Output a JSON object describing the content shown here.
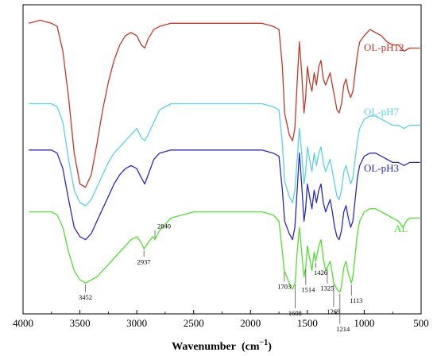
{
  "chart_data": {
    "type": "line",
    "title": "",
    "xlabel": "Wavenumber  (cm",
    "xlabel_sup": "−1",
    "xlabel_close": ")",
    "ylabel": "",
    "xlim": [
      4000,
      500
    ],
    "x_reversed": true,
    "x_ticks": [
      "4000",
      "3500",
      "3000",
      "2500",
      "2000",
      "1500",
      "1000",
      "500"
    ],
    "y_ticks_shown": false,
    "grid": false,
    "legend": "inline labels to the right of each trace",
    "series": [
      {
        "name": "OL-pH12",
        "color": "#c0392b",
        "points": [
          [
            3950,
            94
          ],
          [
            3850,
            95
          ],
          [
            3750,
            94
          ],
          [
            3700,
            93
          ],
          [
            3650,
            85
          ],
          [
            3600,
            70
          ],
          [
            3550,
            52
          ],
          [
            3500,
            42
          ],
          [
            3450,
            41
          ],
          [
            3400,
            45
          ],
          [
            3350,
            55
          ],
          [
            3300,
            66
          ],
          [
            3250,
            75
          ],
          [
            3200,
            82
          ],
          [
            3150,
            87
          ],
          [
            3100,
            90
          ],
          [
            3050,
            91
          ],
          [
            3000,
            90
          ],
          [
            2960,
            87
          ],
          [
            2930,
            86
          ],
          [
            2900,
            89
          ],
          [
            2850,
            92
          ],
          [
            2800,
            93
          ],
          [
            2700,
            94
          ],
          [
            2500,
            94
          ],
          [
            2300,
            94
          ],
          [
            2100,
            94
          ],
          [
            1900,
            94
          ],
          [
            1800,
            93
          ],
          [
            1750,
            92
          ],
          [
            1720,
            80
          ],
          [
            1700,
            65
          ],
          [
            1660,
            58
          ],
          [
            1630,
            56
          ],
          [
            1610,
            60
          ],
          [
            1590,
            75
          ],
          [
            1570,
            88
          ],
          [
            1550,
            78
          ],
          [
            1530,
            65
          ],
          [
            1515,
            70
          ],
          [
            1500,
            80
          ],
          [
            1480,
            75
          ],
          [
            1460,
            72
          ],
          [
            1440,
            78
          ],
          [
            1420,
            74
          ],
          [
            1400,
            80
          ],
          [
            1380,
            82
          ],
          [
            1360,
            76
          ],
          [
            1340,
            74
          ],
          [
            1320,
            76
          ],
          [
            1300,
            78
          ],
          [
            1280,
            74
          ],
          [
            1260,
            70
          ],
          [
            1240,
            66
          ],
          [
            1220,
            65
          ],
          [
            1200,
            68
          ],
          [
            1180,
            74
          ],
          [
            1160,
            76
          ],
          [
            1140,
            72
          ],
          [
            1120,
            70
          ],
          [
            1100,
            72
          ],
          [
            1080,
            78
          ],
          [
            1060,
            84
          ],
          [
            1040,
            88
          ],
          [
            1000,
            90
          ],
          [
            950,
            92
          ],
          [
            900,
            91
          ],
          [
            850,
            90
          ],
          [
            800,
            88
          ],
          [
            750,
            87
          ],
          [
            700,
            87
          ],
          [
            650,
            85
          ],
          [
            600,
            86
          ],
          [
            550,
            86
          ],
          [
            510,
            86
          ]
        ]
      },
      {
        "name": "OL-pH7",
        "color": "#5dd0e8",
        "points": [
          [
            3950,
            68
          ],
          [
            3850,
            68
          ],
          [
            3750,
            68
          ],
          [
            3700,
            67
          ],
          [
            3650,
            62
          ],
          [
            3600,
            50
          ],
          [
            3550,
            40
          ],
          [
            3500,
            36
          ],
          [
            3450,
            35
          ],
          [
            3400,
            37
          ],
          [
            3350,
            41
          ],
          [
            3300,
            45
          ],
          [
            3250,
            49
          ],
          [
            3200,
            52
          ],
          [
            3150,
            54
          ],
          [
            3100,
            56
          ],
          [
            3050,
            58
          ],
          [
            3000,
            60
          ],
          [
            2960,
            57
          ],
          [
            2930,
            56
          ],
          [
            2900,
            58
          ],
          [
            2850,
            62
          ],
          [
            2800,
            66
          ],
          [
            2700,
            68
          ],
          [
            2500,
            68
          ],
          [
            2300,
            68
          ],
          [
            2100,
            68
          ],
          [
            1900,
            68
          ],
          [
            1800,
            67
          ],
          [
            1750,
            66
          ],
          [
            1720,
            55
          ],
          [
            1700,
            43
          ],
          [
            1660,
            38
          ],
          [
            1630,
            36
          ],
          [
            1610,
            40
          ],
          [
            1590,
            50
          ],
          [
            1570,
            60
          ],
          [
            1550,
            52
          ],
          [
            1530,
            42
          ],
          [
            1515,
            46
          ],
          [
            1500,
            54
          ],
          [
            1480,
            50
          ],
          [
            1460,
            46
          ],
          [
            1440,
            52
          ],
          [
            1420,
            48
          ],
          [
            1400,
            52
          ],
          [
            1380,
            54
          ],
          [
            1360,
            49
          ],
          [
            1340,
            46
          ],
          [
            1320,
            48
          ],
          [
            1300,
            50
          ],
          [
            1280,
            46
          ],
          [
            1260,
            42
          ],
          [
            1240,
            38
          ],
          [
            1220,
            37
          ],
          [
            1200,
            40
          ],
          [
            1180,
            46
          ],
          [
            1160,
            48
          ],
          [
            1140,
            45
          ],
          [
            1120,
            42
          ],
          [
            1100,
            44
          ],
          [
            1080,
            50
          ],
          [
            1060,
            56
          ],
          [
            1040,
            60
          ],
          [
            1000,
            63
          ],
          [
            950,
            64
          ],
          [
            900,
            64
          ],
          [
            850,
            63
          ],
          [
            800,
            62
          ],
          [
            750,
            61
          ],
          [
            700,
            61
          ],
          [
            650,
            60
          ],
          [
            600,
            61
          ],
          [
            550,
            61
          ],
          [
            510,
            61
          ]
        ]
      },
      {
        "name": "OL-pH3",
        "color": "#2b2bb8",
        "points": [
          [
            3950,
            53
          ],
          [
            3850,
            53
          ],
          [
            3750,
            53
          ],
          [
            3700,
            52
          ],
          [
            3650,
            47
          ],
          [
            3600,
            37
          ],
          [
            3550,
            28
          ],
          [
            3500,
            25
          ],
          [
            3450,
            24
          ],
          [
            3400,
            26
          ],
          [
            3350,
            30
          ],
          [
            3300,
            34
          ],
          [
            3250,
            38
          ],
          [
            3200,
            42
          ],
          [
            3150,
            45
          ],
          [
            3100,
            47
          ],
          [
            3050,
            48
          ],
          [
            3000,
            47
          ],
          [
            2960,
            44
          ],
          [
            2930,
            42
          ],
          [
            2900,
            45
          ],
          [
            2850,
            50
          ],
          [
            2800,
            52
          ],
          [
            2700,
            53
          ],
          [
            2500,
            53
          ],
          [
            2300,
            53
          ],
          [
            2100,
            53
          ],
          [
            1900,
            53
          ],
          [
            1800,
            52
          ],
          [
            1750,
            51
          ],
          [
            1720,
            40
          ],
          [
            1700,
            30
          ],
          [
            1660,
            26
          ],
          [
            1630,
            24
          ],
          [
            1610,
            28
          ],
          [
            1590,
            40
          ],
          [
            1570,
            52
          ],
          [
            1550,
            42
          ],
          [
            1530,
            30
          ],
          [
            1515,
            34
          ],
          [
            1500,
            42
          ],
          [
            1480,
            38
          ],
          [
            1460,
            34
          ],
          [
            1440,
            40
          ],
          [
            1420,
            36
          ],
          [
            1400,
            40
          ],
          [
            1380,
            42
          ],
          [
            1360,
            36
          ],
          [
            1340,
            33
          ],
          [
            1320,
            35
          ],
          [
            1300,
            37
          ],
          [
            1280,
            33
          ],
          [
            1260,
            28
          ],
          [
            1240,
            25
          ],
          [
            1220,
            24
          ],
          [
            1200,
            27
          ],
          [
            1180,
            33
          ],
          [
            1160,
            35
          ],
          [
            1140,
            31
          ],
          [
            1120,
            28
          ],
          [
            1100,
            30
          ],
          [
            1080,
            37
          ],
          [
            1060,
            44
          ],
          [
            1040,
            48
          ],
          [
            1000,
            51
          ],
          [
            950,
            52
          ],
          [
            900,
            52
          ],
          [
            850,
            51
          ],
          [
            800,
            50
          ],
          [
            750,
            49
          ],
          [
            700,
            49
          ],
          [
            650,
            48
          ],
          [
            600,
            49
          ],
          [
            550,
            49
          ],
          [
            510,
            49
          ]
        ]
      },
      {
        "name": "AL",
        "color": "#55dd33",
        "points": [
          [
            3950,
            33
          ],
          [
            3850,
            33
          ],
          [
            3750,
            33
          ],
          [
            3700,
            32
          ],
          [
            3650,
            28
          ],
          [
            3600,
            20
          ],
          [
            3550,
            14
          ],
          [
            3500,
            11
          ],
          [
            3450,
            10
          ],
          [
            3400,
            11
          ],
          [
            3350,
            12
          ],
          [
            3300,
            14
          ],
          [
            3250,
            16
          ],
          [
            3200,
            18
          ],
          [
            3150,
            20
          ],
          [
            3100,
            22
          ],
          [
            3050,
            24
          ],
          [
            3000,
            25
          ],
          [
            2960,
            23
          ],
          [
            2937,
            21
          ],
          [
            2900,
            23
          ],
          [
            2860,
            25
          ],
          [
            2840,
            24
          ],
          [
            2800,
            27
          ],
          [
            2700,
            31
          ],
          [
            2500,
            33
          ],
          [
            2300,
            33
          ],
          [
            2100,
            33
          ],
          [
            1900,
            33
          ],
          [
            1800,
            32
          ],
          [
            1750,
            30
          ],
          [
            1720,
            20
          ],
          [
            1703,
            14
          ],
          [
            1660,
            10
          ],
          [
            1630,
            8
          ],
          [
            1608,
            10
          ],
          [
            1590,
            20
          ],
          [
            1570,
            28
          ],
          [
            1550,
            20
          ],
          [
            1530,
            12
          ],
          [
            1514,
            15
          ],
          [
            1500,
            22
          ],
          [
            1480,
            18
          ],
          [
            1460,
            14
          ],
          [
            1440,
            20
          ],
          [
            1426,
            17
          ],
          [
            1400,
            22
          ],
          [
            1380,
            24
          ],
          [
            1360,
            18
          ],
          [
            1340,
            14
          ],
          [
            1325,
            15
          ],
          [
            1300,
            17
          ],
          [
            1280,
            13
          ],
          [
            1269,
            10
          ],
          [
            1240,
            8
          ],
          [
            1214,
            7
          ],
          [
            1200,
            9
          ],
          [
            1180,
            15
          ],
          [
            1160,
            17
          ],
          [
            1140,
            13
          ],
          [
            1113,
            10
          ],
          [
            1100,
            12
          ],
          [
            1080,
            19
          ],
          [
            1060,
            26
          ],
          [
            1040,
            30
          ],
          [
            1000,
            33
          ],
          [
            950,
            34
          ],
          [
            900,
            34
          ],
          [
            850,
            33
          ],
          [
            800,
            32
          ],
          [
            750,
            31
          ],
          [
            700,
            30
          ],
          [
            660,
            28
          ],
          [
            630,
            30
          ],
          [
            600,
            31
          ],
          [
            550,
            31
          ],
          [
            510,
            31
          ]
        ]
      }
    ],
    "annotations": [
      {
        "label": "3452",
        "x": 3452
      },
      {
        "label": "2937",
        "x": 2937
      },
      {
        "label": "2840",
        "x": 2840
      },
      {
        "label": "1703",
        "x": 1703
      },
      {
        "label": "1608",
        "x": 1608
      },
      {
        "label": "1514",
        "x": 1514
      },
      {
        "label": "1426",
        "x": 1426
      },
      {
        "label": "1325",
        "x": 1325
      },
      {
        "label": "1269",
        "x": 1269
      },
      {
        "label": "1214",
        "x": 1214
      },
      {
        "label": "1113",
        "x": 1113
      }
    ]
  }
}
